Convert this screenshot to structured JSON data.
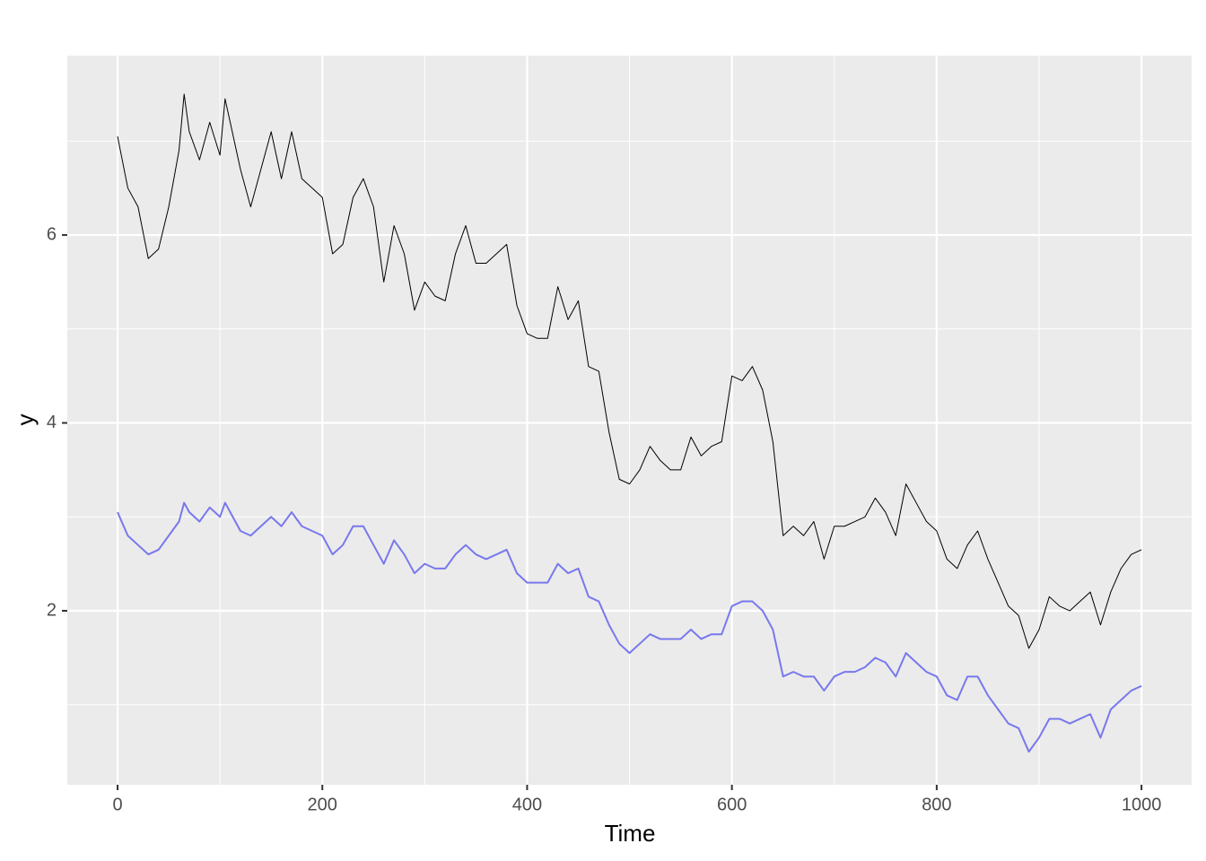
{
  "chart_data": {
    "type": "line",
    "x_label": "Time",
    "y_label": "y",
    "x": [
      0,
      10,
      20,
      30,
      40,
      50,
      60,
      65,
      70,
      80,
      90,
      100,
      105,
      110,
      120,
      130,
      140,
      150,
      160,
      170,
      180,
      190,
      200,
      210,
      220,
      230,
      240,
      250,
      260,
      270,
      280,
      290,
      300,
      310,
      320,
      330,
      340,
      350,
      360,
      370,
      380,
      390,
      400,
      410,
      420,
      430,
      440,
      450,
      460,
      470,
      480,
      490,
      500,
      510,
      520,
      530,
      540,
      550,
      560,
      570,
      580,
      590,
      600,
      610,
      620,
      630,
      640,
      650,
      660,
      670,
      680,
      690,
      700,
      710,
      720,
      730,
      740,
      750,
      760,
      770,
      780,
      790,
      800,
      810,
      820,
      830,
      840,
      850,
      860,
      870,
      880,
      890,
      900,
      910,
      920,
      930,
      940,
      950,
      960,
      970,
      980,
      990,
      1000
    ],
    "series": [
      {
        "color": "#000000",
        "width": 1,
        "values": [
          7.05,
          6.5,
          6.3,
          5.75,
          5.85,
          6.3,
          6.9,
          7.5,
          7.1,
          6.8,
          7.2,
          6.85,
          7.45,
          7.2,
          6.7,
          6.3,
          6.7,
          7.1,
          6.6,
          7.1,
          6.6,
          6.5,
          6.4,
          5.8,
          5.9,
          6.4,
          6.6,
          6.3,
          5.5,
          6.1,
          5.8,
          5.2,
          5.5,
          5.35,
          5.3,
          5.8,
          6.1,
          5.7,
          5.7,
          5.8,
          5.9,
          5.25,
          4.95,
          4.9,
          4.9,
          5.45,
          5.1,
          5.3,
          4.6,
          4.55,
          3.9,
          3.4,
          3.35,
          3.5,
          3.75,
          3.6,
          3.5,
          3.5,
          3.85,
          3.65,
          3.75,
          3.8,
          4.5,
          4.45,
          4.6,
          4.35,
          3.8,
          2.8,
          2.9,
          2.8,
          2.95,
          2.55,
          2.9,
          2.9,
          2.95,
          3.0,
          3.2,
          3.05,
          2.8,
          3.35,
          3.15,
          2.95,
          2.85,
          2.55,
          2.45,
          2.7,
          2.85,
          2.55,
          2.3,
          2.05,
          1.95,
          1.6,
          1.8,
          2.15,
          2.05,
          2.0,
          2.1,
          2.2,
          1.85,
          2.2,
          2.45,
          2.6,
          2.65
        ]
      },
      {
        "color": "#7878ee",
        "width": 2,
        "values": [
          3.05,
          2.8,
          2.7,
          2.6,
          2.65,
          2.8,
          2.95,
          3.15,
          3.05,
          2.95,
          3.1,
          3.0,
          3.15,
          3.05,
          2.85,
          2.8,
          2.9,
          3.0,
          2.9,
          3.05,
          2.9,
          2.85,
          2.8,
          2.6,
          2.7,
          2.9,
          2.9,
          2.7,
          2.5,
          2.75,
          2.6,
          2.4,
          2.5,
          2.45,
          2.45,
          2.6,
          2.7,
          2.6,
          2.55,
          2.6,
          2.65,
          2.4,
          2.3,
          2.3,
          2.3,
          2.5,
          2.4,
          2.45,
          2.15,
          2.1,
          1.85,
          1.65,
          1.55,
          1.65,
          1.75,
          1.7,
          1.7,
          1.7,
          1.8,
          1.7,
          1.75,
          1.75,
          2.05,
          2.1,
          2.1,
          2.0,
          1.8,
          1.3,
          1.35,
          1.3,
          1.3,
          1.15,
          1.3,
          1.35,
          1.35,
          1.4,
          1.5,
          1.45,
          1.3,
          1.55,
          1.45,
          1.35,
          1.3,
          1.1,
          1.05,
          1.3,
          1.3,
          1.1,
          0.95,
          0.8,
          0.75,
          0.5,
          0.65,
          0.85,
          0.85,
          0.8,
          0.85,
          0.9,
          0.65,
          0.95,
          1.05,
          1.15,
          1.2
        ]
      }
    ],
    "xlim": [
      -49.1,
      1049
    ],
    "ylim": [
      0.148,
      7.91
    ],
    "xticks": [
      0,
      200,
      400,
      600,
      800,
      1000
    ],
    "yticks": [
      2,
      4,
      6
    ],
    "x_minor_ticks": [
      100,
      300,
      500,
      700,
      900
    ],
    "y_minor_ticks": [
      1,
      3,
      5,
      7
    ],
    "grid": true
  }
}
